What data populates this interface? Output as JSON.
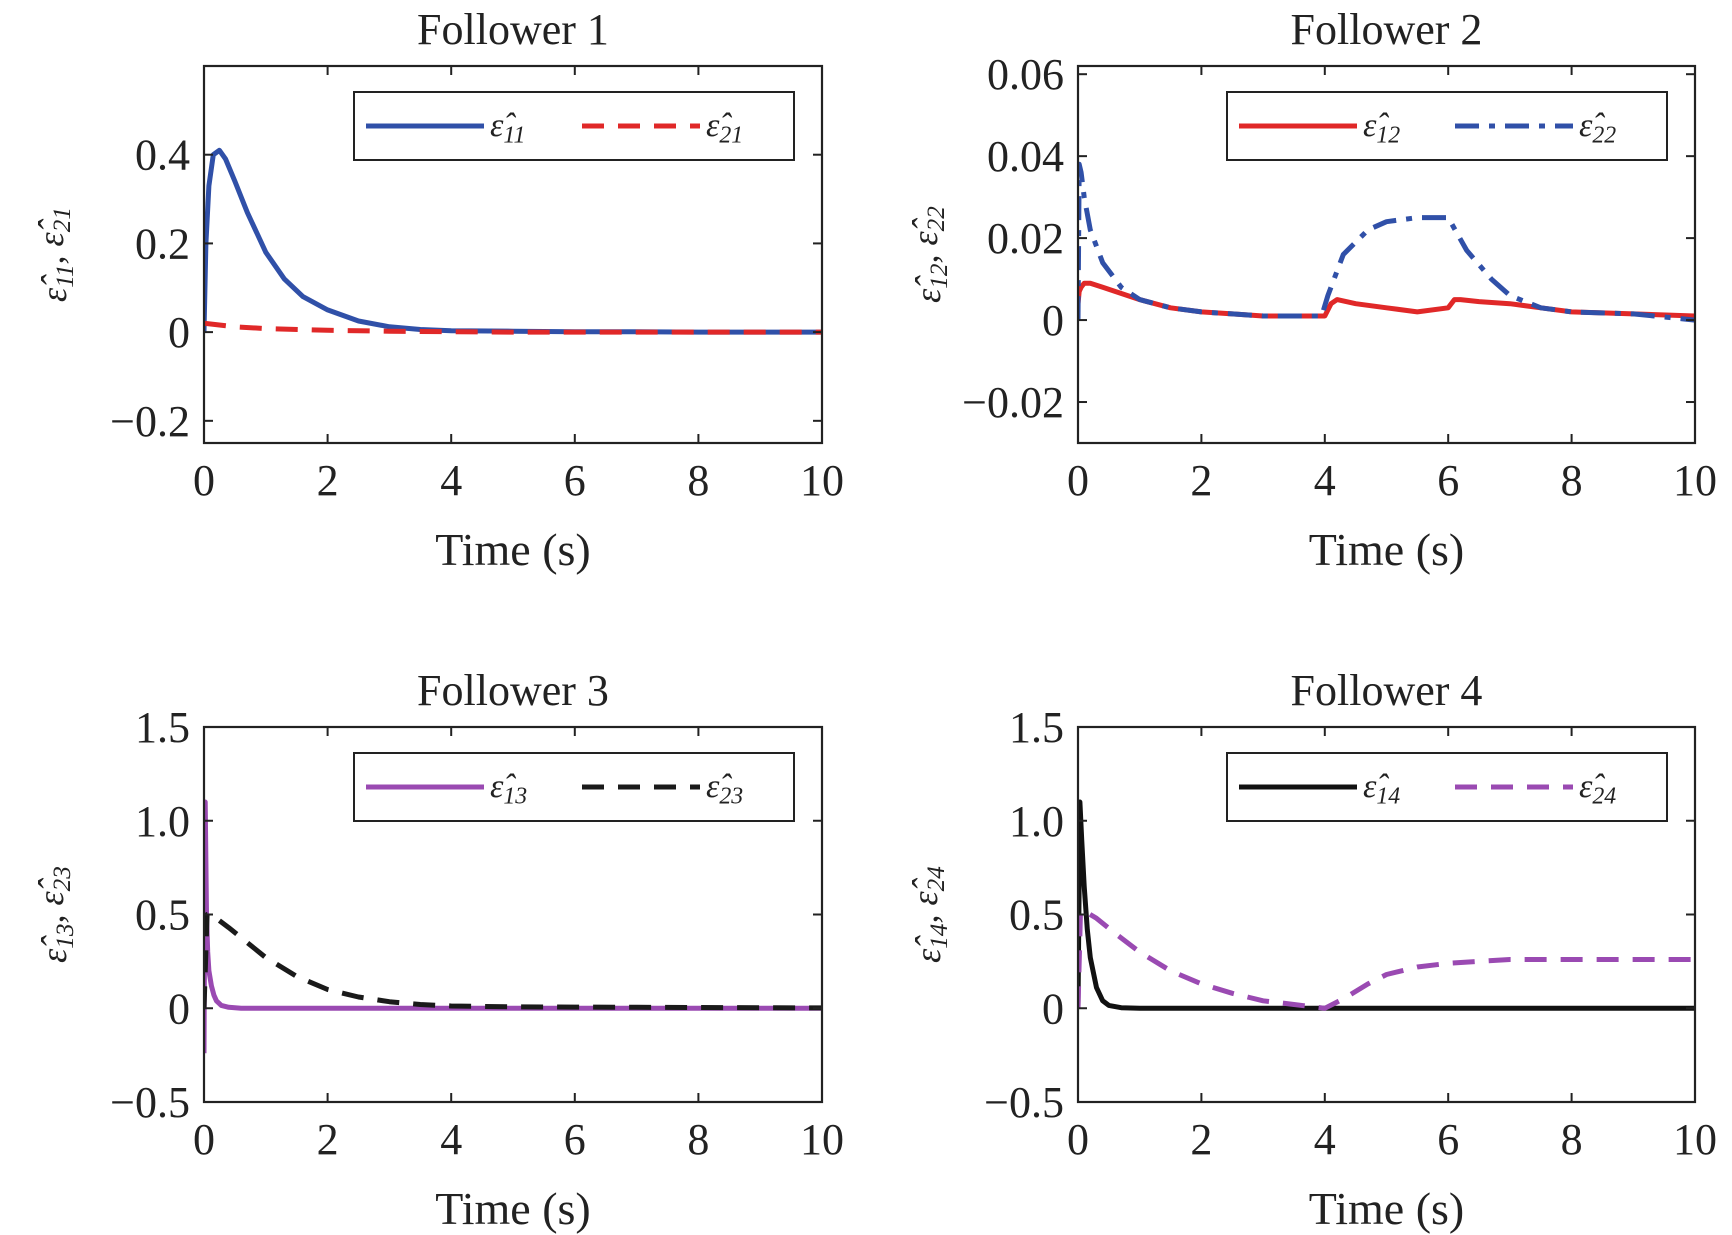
{
  "chart_data": [
    {
      "type": "line",
      "title": "Follower 1",
      "xlabel": "Time (s)",
      "ylabel": "ε̂11, ε̂21",
      "xlim": [
        0,
        10
      ],
      "ylim": [
        -0.25,
        0.6
      ],
      "xticks": [
        0,
        2,
        4,
        6,
        8,
        10
      ],
      "xtick_labels": [
        "0",
        "2",
        "4",
        "6",
        "8",
        "10"
      ],
      "yticks": [
        -0.2,
        0,
        0.2,
        0.4
      ],
      "ytick_labels": [
        "−0.2",
        "0",
        "0.2",
        "0.4"
      ],
      "legend_position": "top-right",
      "series": [
        {
          "name": "ε̂11",
          "color": "#3050a8",
          "dash": "solid",
          "x": [
            0,
            0.03,
            0.08,
            0.15,
            0.25,
            0.35,
            0.5,
            0.7,
            1.0,
            1.3,
            1.6,
            2.0,
            2.5,
            3.0,
            3.5,
            4.0,
            5.0,
            6.0,
            7.0,
            8.0,
            9.0,
            10.0
          ],
          "y": [
            0,
            0.2,
            0.33,
            0.4,
            0.41,
            0.39,
            0.34,
            0.27,
            0.18,
            0.12,
            0.08,
            0.05,
            0.025,
            0.012,
            0.006,
            0.003,
            0.002,
            0.001,
            0.001,
            0.0,
            0.0,
            0.0
          ]
        },
        {
          "name": "ε̂21",
          "color": "#e02828",
          "dash": "dashed",
          "x": [
            0,
            0.5,
            1,
            2,
            3,
            4,
            5,
            6,
            7,
            8,
            9,
            10
          ],
          "y": [
            0.02,
            0.012,
            0.008,
            0.004,
            0.002,
            0.001,
            0.0,
            0.0,
            0.0,
            0.0,
            0.0,
            0.0
          ]
        }
      ]
    },
    {
      "type": "line",
      "title": "Follower 2",
      "xlabel": "Time (s)",
      "ylabel": "ε̂12, ε̂22",
      "xlim": [
        0,
        10
      ],
      "ylim": [
        -0.03,
        0.062
      ],
      "xticks": [
        0,
        2,
        4,
        6,
        8,
        10
      ],
      "xtick_labels": [
        "0",
        "2",
        "4",
        "6",
        "8",
        "10"
      ],
      "yticks": [
        -0.02,
        0,
        0.02,
        0.04,
        0.06
      ],
      "ytick_labels": [
        "−0.02",
        "0",
        "0.02",
        "0.04",
        "0.06"
      ],
      "legend_position": "top-right",
      "series": [
        {
          "name": "ε̂12",
          "color": "#e02828",
          "dash": "solid",
          "x": [
            0,
            0.02,
            0.05,
            0.1,
            0.2,
            0.4,
            0.6,
            1.0,
            1.5,
            2.0,
            2.5,
            3.0,
            3.5,
            3.9,
            4.0,
            4.1,
            4.2,
            4.5,
            5.0,
            5.5,
            6.0,
            6.1,
            6.2,
            6.5,
            7.0,
            7.5,
            8.0,
            9.0,
            10.0
          ],
          "y": [
            0.004,
            0.007,
            0.008,
            0.009,
            0.009,
            0.008,
            0.007,
            0.005,
            0.003,
            0.002,
            0.0015,
            0.001,
            0.001,
            0.001,
            0.001,
            0.004,
            0.005,
            0.004,
            0.003,
            0.002,
            0.003,
            0.005,
            0.005,
            0.0045,
            0.004,
            0.003,
            0.002,
            0.0015,
            0.001
          ]
        },
        {
          "name": "ε̂22",
          "color": "#3050a8",
          "dash": "dashdot",
          "x": [
            0,
            0.02,
            0.05,
            0.1,
            0.2,
            0.4,
            0.7,
            1.0,
            1.5,
            2.0,
            2.5,
            3.0,
            3.5,
            3.95,
            4.05,
            4.3,
            4.7,
            5.0,
            5.5,
            6.0,
            6.3,
            6.7,
            7.0,
            7.5,
            8.0,
            9.0,
            10.0
          ],
          "y": [
            0,
            0.038,
            0.036,
            0.03,
            0.022,
            0.014,
            0.008,
            0.005,
            0.003,
            0.002,
            0.0015,
            0.001,
            0.001,
            0.001,
            0.006,
            0.016,
            0.022,
            0.024,
            0.025,
            0.025,
            0.017,
            0.01,
            0.006,
            0.003,
            0.002,
            0.0015,
            0.0
          ]
        }
      ]
    },
    {
      "type": "line",
      "title": "Follower 3",
      "xlabel": "Time (s)",
      "ylabel": "ε̂13, ε̂23",
      "xlim": [
        0,
        10
      ],
      "ylim": [
        -0.5,
        1.5
      ],
      "xticks": [
        0,
        2,
        4,
        6,
        8,
        10
      ],
      "xtick_labels": [
        "0",
        "2",
        "4",
        "6",
        "8",
        "10"
      ],
      "yticks": [
        -0.5,
        0,
        0.5,
        1.0,
        1.5
      ],
      "ytick_labels": [
        "−0.5",
        "0",
        "0.5",
        "1.0",
        "1.5"
      ],
      "legend_position": "top-right",
      "series": [
        {
          "name": "ε̂13",
          "color": "#9a4ab2",
          "dash": "solid",
          "x": [
            0,
            0.02,
            0.04,
            0.06,
            0.08,
            0.12,
            0.16,
            0.2,
            0.28,
            0.4,
            0.6,
            1.0,
            10.0
          ],
          "y": [
            -0.24,
            1.1,
            0.5,
            0.3,
            0.2,
            0.12,
            0.07,
            0.04,
            0.015,
            0.005,
            0.0,
            0.0,
            0.0
          ]
        },
        {
          "name": "ε̂23",
          "color": "#1a1a1a",
          "dash": "dashed",
          "x": [
            0,
            0.05,
            0.1,
            0.2,
            0.4,
            0.7,
            1.0,
            1.5,
            2.0,
            2.5,
            3.0,
            3.5,
            4.0,
            5.0,
            6.0,
            7.0,
            8.0,
            9.0,
            10.0
          ],
          "y": [
            0.0,
            0.5,
            0.5,
            0.48,
            0.43,
            0.35,
            0.27,
            0.17,
            0.1,
            0.06,
            0.035,
            0.02,
            0.012,
            0.008,
            0.006,
            0.005,
            0.004,
            0.003,
            0.002
          ]
        }
      ]
    },
    {
      "type": "line",
      "title": "Follower 4",
      "xlabel": "Time (s)",
      "ylabel": "ε̂14, ε̂24",
      "xlim": [
        0,
        10
      ],
      "ylim": [
        -0.5,
        1.5
      ],
      "xticks": [
        0,
        2,
        4,
        6,
        8,
        10
      ],
      "xtick_labels": [
        "0",
        "2",
        "4",
        "6",
        "8",
        "10"
      ],
      "yticks": [
        -0.5,
        0,
        0.5,
        1.0,
        1.5
      ],
      "ytick_labels": [
        "−0.5",
        "0",
        "0.5",
        "1.0",
        "1.5"
      ],
      "legend_position": "top-right",
      "series": [
        {
          "name": "ε̂14",
          "color": "#111111",
          "dash": "solid",
          "x": [
            0,
            0.03,
            0.06,
            0.1,
            0.15,
            0.2,
            0.3,
            0.4,
            0.5,
            0.7,
            1.0,
            10.0
          ],
          "y": [
            0.0,
            1.1,
            0.9,
            0.65,
            0.42,
            0.27,
            0.11,
            0.04,
            0.015,
            0.003,
            0.0,
            0.0
          ]
        },
        {
          "name": "ε̂24",
          "color": "#9a4ab2",
          "dash": "dashed",
          "x": [
            0,
            0.04,
            0.1,
            0.3,
            0.6,
            1.0,
            1.5,
            2.0,
            2.5,
            3.0,
            3.5,
            4.0,
            4.3,
            4.7,
            5.0,
            5.5,
            6.0,
            6.5,
            7.0,
            8.0,
            9.0,
            10.0
          ],
          "y": [
            0.0,
            0.52,
            0.52,
            0.48,
            0.4,
            0.3,
            0.2,
            0.13,
            0.08,
            0.04,
            0.02,
            0.0,
            0.05,
            0.13,
            0.18,
            0.22,
            0.24,
            0.25,
            0.26,
            0.26,
            0.26,
            0.26
          ]
        }
      ]
    }
  ]
}
